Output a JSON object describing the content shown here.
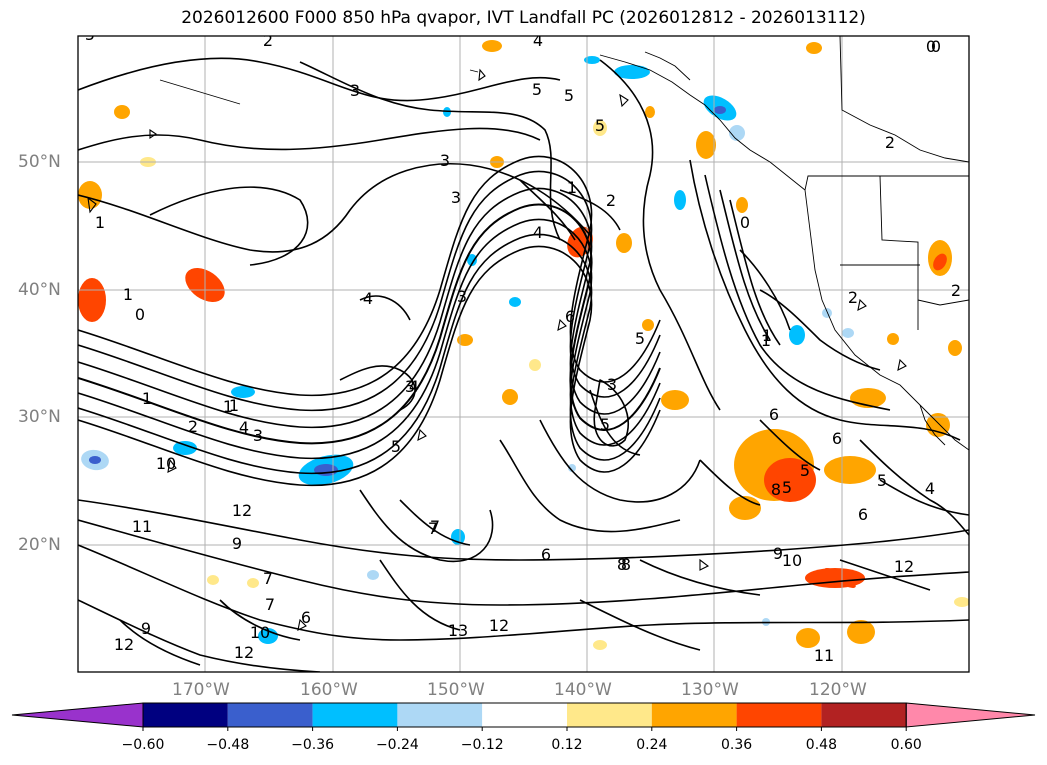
{
  "title": "2026012600 F000 850 hPa qvapor, IVT Landfall PC (2026012812 - 2026013112)",
  "map": {
    "lat_labels": [
      "50°N",
      "40°N",
      "30°N",
      "20°N"
    ],
    "lon_labels": [
      "170°W",
      "160°W",
      "150°W",
      "140°W",
      "130°W",
      "120°W"
    ],
    "contour_labels": [
      "5",
      "4",
      "3",
      "2",
      "1",
      "0",
      "5",
      "5",
      "3",
      "3",
      "5",
      "4",
      "2",
      "1",
      "3",
      "0",
      "2",
      "0",
      "4",
      "3",
      "6",
      "5",
      "1",
      "3",
      "5",
      "2",
      "1",
      "4",
      "3",
      "4",
      "1",
      "5",
      "10",
      "11",
      "12",
      "9",
      "7",
      "8",
      "6",
      "7",
      "6",
      "5",
      "8",
      "9",
      "10",
      "12",
      "13",
      "12",
      "11",
      "12",
      "7",
      "10",
      "9",
      "12",
      "6",
      "8",
      "6",
      "5",
      "4",
      "2",
      "1",
      "0",
      "2",
      "1",
      "1",
      "7",
      "5",
      "6"
    ]
  },
  "colorbar": {
    "colors": [
      "#9932cc",
      "#000080",
      "#3a5fcd",
      "#00bfff",
      "#add8f5",
      "#ffffff",
      "#ffe88a",
      "#ffa500",
      "#ff4500",
      "#b22222",
      "#ff88aa"
    ],
    "tick_labels": [
      "−0.60",
      "−0.48",
      "−0.36",
      "−0.24",
      "−0.12",
      "0.12",
      "0.24",
      "0.36",
      "0.48",
      "0.60"
    ]
  }
}
